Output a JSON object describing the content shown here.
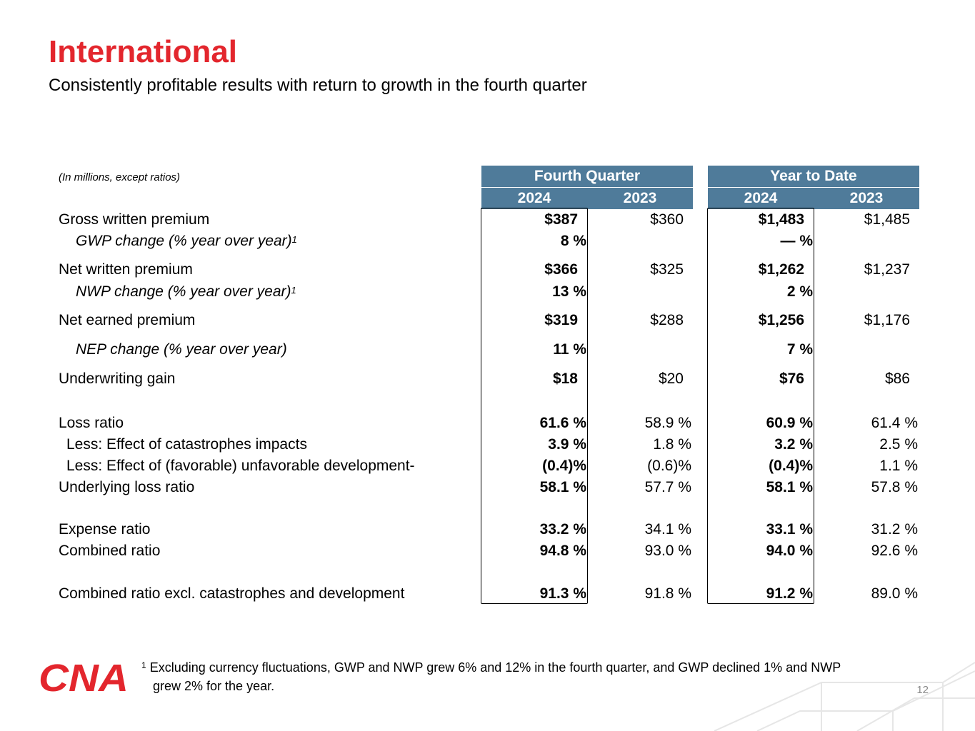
{
  "header": {
    "title": "International",
    "subtitle": "Consistently profitable results with return to growth in the fourth quarter"
  },
  "table": {
    "units_note": "(In millions, except ratios)",
    "groups": [
      "Fourth Quarter",
      "Year to Date"
    ],
    "years": [
      "2024",
      "2023",
      "2024",
      "2023"
    ],
    "rows": [
      {
        "label": "Gross written premium",
        "fn": "",
        "values": [
          "$387",
          "$360",
          "$1,483",
          "$1,485"
        ]
      },
      {
        "label": "GWP change (% year over year)",
        "fn": "1",
        "values": [
          "8 %",
          "",
          "— %",
          ""
        ]
      },
      {
        "label": "Net written premium",
        "fn": "",
        "values": [
          "$366",
          "$325",
          "$1,262",
          "$1,237"
        ]
      },
      {
        "label": "NWP change (% year over year)",
        "fn": "1",
        "values": [
          "13 %",
          "",
          "2 %",
          ""
        ]
      },
      {
        "label": "Net earned premium",
        "fn": "",
        "values": [
          "$319",
          "$288",
          "$1,256",
          "$1,176"
        ]
      },
      {
        "label": "NEP change (% year over year)",
        "fn": "",
        "values": [
          "11 %",
          "",
          "7 %",
          ""
        ]
      },
      {
        "label": "Underwriting gain",
        "fn": "",
        "values": [
          "$18",
          "$20",
          "$76",
          "$86"
        ]
      },
      {
        "label": "Loss ratio",
        "fn": "",
        "values": [
          "61.6 %",
          "58.9 %",
          "60.9 %",
          "61.4 %"
        ]
      },
      {
        "label": "Less: Effect of catastrophes impacts",
        "fn": "",
        "values": [
          "3.9 %",
          "1.8 %",
          "3.2 %",
          "2.5 %"
        ]
      },
      {
        "label": "Less: Effect of (favorable) unfavorable development-",
        "fn": "",
        "values": [
          "(0.4)%",
          "(0.6)%",
          "(0.4)%",
          "1.1 %"
        ]
      },
      {
        "label": "Underlying loss ratio",
        "fn": "",
        "values": [
          "58.1 %",
          "57.7 %",
          "58.1 %",
          "57.8 %"
        ]
      },
      {
        "label": "Expense ratio",
        "fn": "",
        "values": [
          "33.2 %",
          "34.1 %",
          "33.1 %",
          "31.2 %"
        ]
      },
      {
        "label": "Combined ratio",
        "fn": "",
        "values": [
          "94.8 %",
          "93.0 %",
          "94.0 %",
          "92.6 %"
        ]
      },
      {
        "label": "Combined ratio excl. catastrophes and development",
        "fn": "",
        "values": [
          "91.3 %",
          "91.8 %",
          "91.2 %",
          "89.0 %"
        ]
      }
    ]
  },
  "footnote": {
    "marker": "1",
    "line1": "Excluding currency fluctuations, GWP and NWP grew 6% and 12% in the fourth quarter, and GWP declined 1% and NWP",
    "line2": "grew 2% for the year."
  },
  "logo": {
    "text": "CNA"
  },
  "page_number": "12",
  "colors": {
    "title": "#e3262d",
    "header_fill": "#4f7b9a",
    "logo": "#e3262d"
  }
}
